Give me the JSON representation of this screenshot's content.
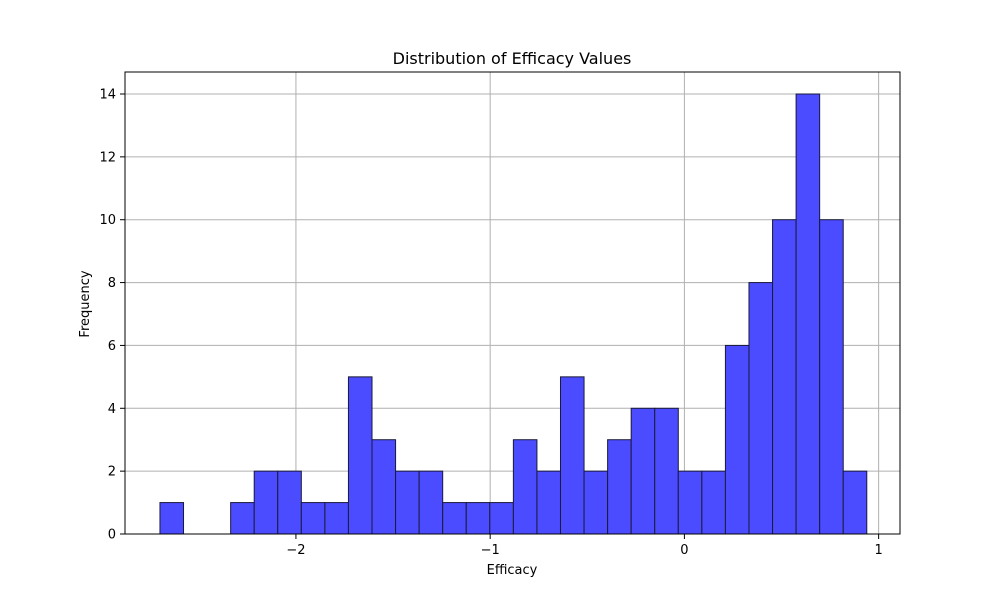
{
  "chart_data": {
    "type": "bar",
    "title": "Distribution of Efficacy Values",
    "xlabel": "Efficacy",
    "ylabel": "Frequency",
    "xlim": [
      -2.88,
      1.11
    ],
    "ylim": [
      0,
      14.7
    ],
    "xticks": [
      -2,
      -1,
      0,
      1
    ],
    "xtick_labels": [
      "−2",
      "−1",
      "0",
      "1"
    ],
    "yticks": [
      0,
      2,
      4,
      6,
      8,
      10,
      12,
      14
    ],
    "ytick_labels": [
      "0",
      "2",
      "4",
      "6",
      "8",
      "10",
      "12",
      "14"
    ],
    "grid": true,
    "bar_color": "#4b4bff",
    "edge_color": "#1a1a3a",
    "bins": {
      "start": -2.7,
      "width": 0.1213,
      "counts": [
        1,
        0,
        0,
        1,
        2,
        2,
        1,
        1,
        5,
        3,
        2,
        2,
        1,
        1,
        1,
        3,
        2,
        5,
        2,
        3,
        4,
        4,
        2,
        2,
        6,
        8,
        10,
        14,
        10,
        2
      ]
    }
  }
}
